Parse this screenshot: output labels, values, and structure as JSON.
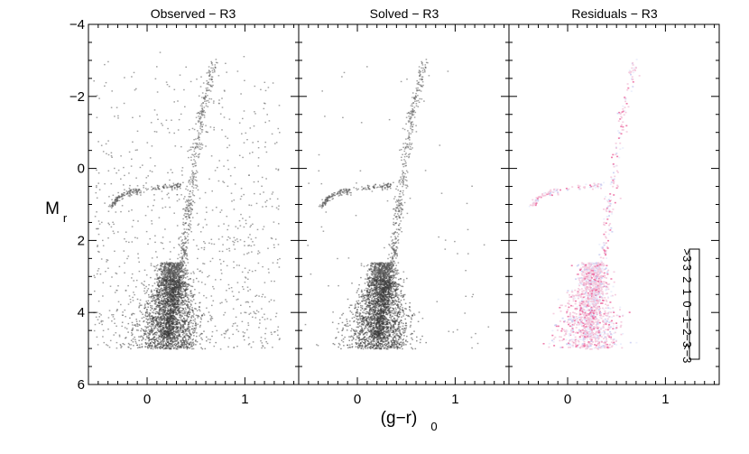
{
  "chart_data": {
    "type": "heatmap",
    "panels": [
      {
        "title": "Observed − R3",
        "kind": "density"
      },
      {
        "title": "Solved − R3",
        "kind": "density"
      },
      {
        "title": "Residuals − R3",
        "kind": "residual"
      }
    ],
    "xlabel_main": "(g−r)",
    "xlabel_sub": "0",
    "ylabel_main": "M",
    "ylabel_sub": "r",
    "xlim": [
      -0.6,
      1.55
    ],
    "ylim": [
      6,
      -4
    ],
    "x_ticks": [
      {
        "value": 0,
        "label": "0"
      },
      {
        "value": 1,
        "label": "1"
      }
    ],
    "y_ticks": [
      {
        "value": -4,
        "label": "−4"
      },
      {
        "value": -2,
        "label": "−2"
      },
      {
        "value": 0,
        "label": "0"
      },
      {
        "value": 2,
        "label": "2"
      },
      {
        "value": 4,
        "label": "4"
      },
      {
        "value": 6,
        "label": "6"
      }
    ],
    "colorbar": {
      "labels": [
        ">3",
        "3",
        "2",
        "1",
        "0",
        "−1",
        "−2",
        "−3",
        "<−3"
      ],
      "colors": [
        "#e8141f",
        "#ec5a8c",
        "#f4a9c8",
        "#ffffff",
        "#ffffff",
        "#c9cdf2",
        "#8a95e6",
        "#3f63e8",
        "#2a48e0"
      ]
    },
    "features": {
      "main_sequence_turnoff": {
        "x": 0.22,
        "y": 4.0
      },
      "giant_branch": [
        [
          0.2,
          4.6
        ],
        [
          0.35,
          2.5
        ],
        [
          0.45,
          0.5
        ],
        [
          0.55,
          -1.5
        ],
        [
          0.68,
          -3.0
        ]
      ],
      "horizontal_branch": [
        [
          -0.38,
          1.05
        ],
        [
          -0.28,
          0.75
        ],
        [
          -0.1,
          0.6
        ],
        [
          0.2,
          0.5
        ],
        [
          0.35,
          0.45
        ]
      ],
      "magnitude_limit": 5.0
    }
  }
}
